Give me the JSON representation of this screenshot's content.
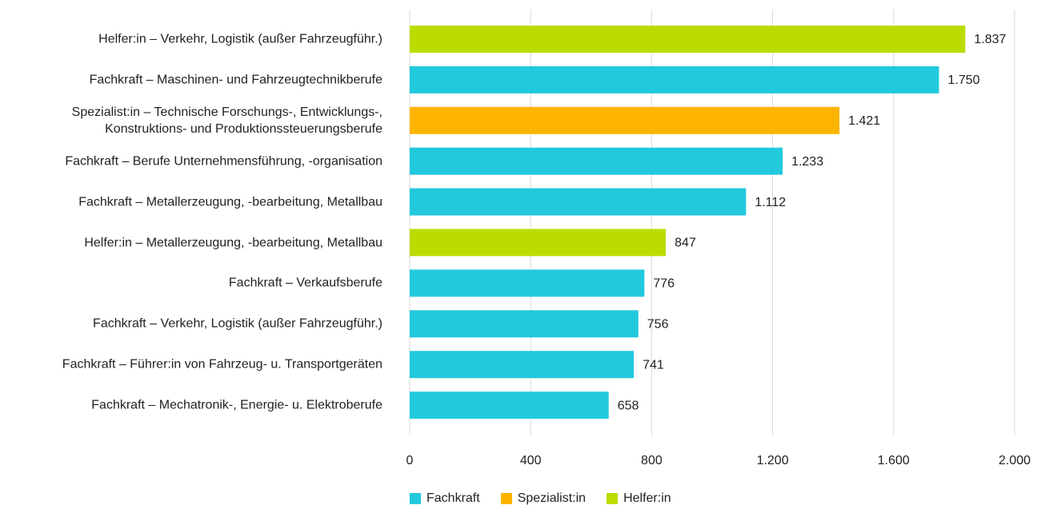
{
  "chart_data": {
    "type": "bar",
    "orientation": "horizontal",
    "categories": [
      "Helfer:in – Verkehr, Logistik (außer Fahrzeugführ.)",
      "Fachkraft – Maschinen- und Fahrzeugtechnikberufe",
      "Spezialist:in – Technische Forschungs-, Entwicklungs-,\nKonstruktions- und Produktionssteuerungsberufe",
      "Fachkraft – Berufe Unternehmensführung, -organisation",
      "Fachkraft – Metallerzeugung, -bearbeitung, Metallbau",
      "Helfer:in – Metallerzeugung, -bearbeitung, Metallbau",
      "Fachkraft – Verkaufsberufe",
      "Fachkraft – Verkehr, Logistik (außer Fahrzeugführ.)",
      "Fachkraft – Führer:in von Fahrzeug- u. Transportgeräten",
      "Fachkraft – Mechatronik-, Energie- u. Elektroberufe"
    ],
    "series": [
      {
        "name": "Fachkraft",
        "color": "#22c9dd",
        "values": [
          null,
          1750,
          null,
          1233,
          1112,
          null,
          776,
          756,
          741,
          658
        ],
        "value_labels": [
          null,
          "1.750",
          null,
          "1.233",
          "1.112",
          null,
          "776",
          "756",
          "741",
          "658"
        ]
      },
      {
        "name": "Spezialist:in",
        "color": "#fdb400",
        "values": [
          null,
          null,
          1421,
          null,
          null,
          null,
          null,
          null,
          null,
          null
        ],
        "value_labels": [
          null,
          null,
          "1.421",
          null,
          null,
          null,
          null,
          null,
          null,
          null
        ]
      },
      {
        "name": "Helfer:in",
        "color": "#bcdc00",
        "values": [
          1837,
          null,
          null,
          null,
          null,
          847,
          null,
          null,
          null,
          null
        ],
        "value_labels": [
          "1.837",
          null,
          null,
          null,
          null,
          "847",
          null,
          null,
          null,
          null
        ]
      }
    ],
    "xlim": [
      0,
      2000
    ],
    "xticks": [
      0,
      400,
      800,
      {
        "value": 1200,
        "label": "1.200"
      },
      {
        "value": 1600,
        "label": "1.600"
      },
      {
        "value": 2000,
        "label": "2.000"
      }
    ],
    "grid": true,
    "legend": "bottom"
  }
}
